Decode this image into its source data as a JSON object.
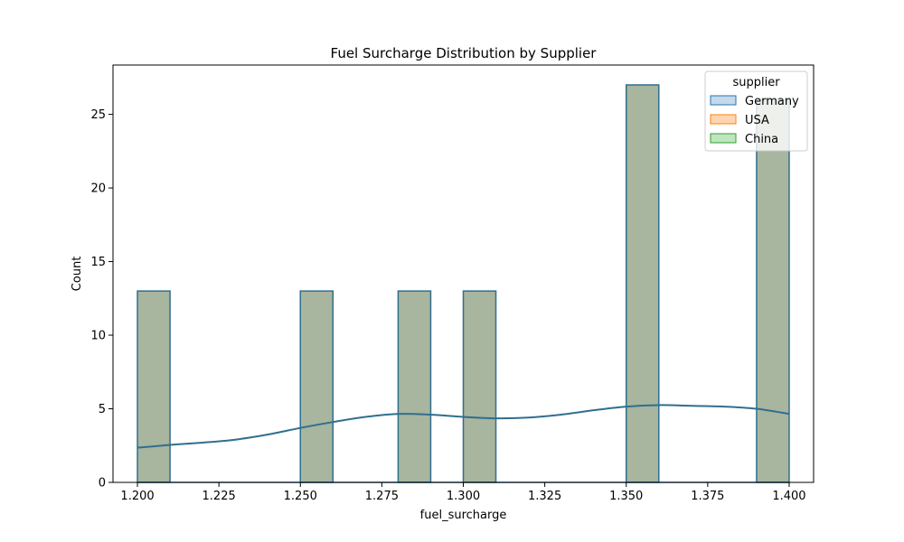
{
  "chart_data": {
    "type": "histogram",
    "title": "Fuel Surcharge Distribution by Supplier",
    "xlabel": "fuel_surcharge",
    "ylabel": "Count",
    "xlim": [
      1.1925,
      1.4075
    ],
    "ylim": [
      0,
      28.35
    ],
    "xticks": [
      "1.200",
      "1.225",
      "1.250",
      "1.275",
      "1.300",
      "1.325",
      "1.350",
      "1.375",
      "1.400"
    ],
    "xtick_values": [
      1.2,
      1.225,
      1.25,
      1.275,
      1.3,
      1.325,
      1.35,
      1.375,
      1.4
    ],
    "yticks": [
      "0",
      "5",
      "10",
      "15",
      "20",
      "25"
    ],
    "ytick_values": [
      0,
      5,
      10,
      15,
      20,
      25
    ],
    "bin_width": 0.01,
    "bins": [
      {
        "x0": 1.2,
        "count": 13
      },
      {
        "x0": 1.25,
        "count": 13
      },
      {
        "x0": 1.28,
        "count": 13
      },
      {
        "x0": 1.3,
        "count": 13
      },
      {
        "x0": 1.35,
        "count": 27
      },
      {
        "x0": 1.39,
        "count": 26
      }
    ],
    "kde": {
      "x": [
        1.2,
        1.21,
        1.22,
        1.23,
        1.24,
        1.25,
        1.26,
        1.27,
        1.28,
        1.29,
        1.3,
        1.31,
        1.32,
        1.33,
        1.34,
        1.35,
        1.36,
        1.37,
        1.38,
        1.39,
        1.4
      ],
      "y": [
        2.35,
        2.55,
        2.7,
        2.9,
        3.25,
        3.7,
        4.1,
        4.45,
        4.65,
        4.6,
        4.45,
        4.35,
        4.4,
        4.6,
        4.9,
        5.15,
        5.25,
        5.2,
        5.15,
        5.0,
        4.65
      ]
    },
    "series": [
      {
        "name": "Germany",
        "face": "#c6d8ea",
        "edge": "#1f77b4"
      },
      {
        "name": "USA",
        "face": "#ffd5b0",
        "edge": "#ff7f0e"
      },
      {
        "name": "China",
        "face": "#bfe5bf",
        "edge": "#2ca02c"
      }
    ],
    "legend": {
      "title": "supplier",
      "location": "top-right"
    },
    "bar_fill": "#a8b59f",
    "bar_edge": "#2f6f8e",
    "kde_color": "#2f6f8e",
    "grid": false
  }
}
